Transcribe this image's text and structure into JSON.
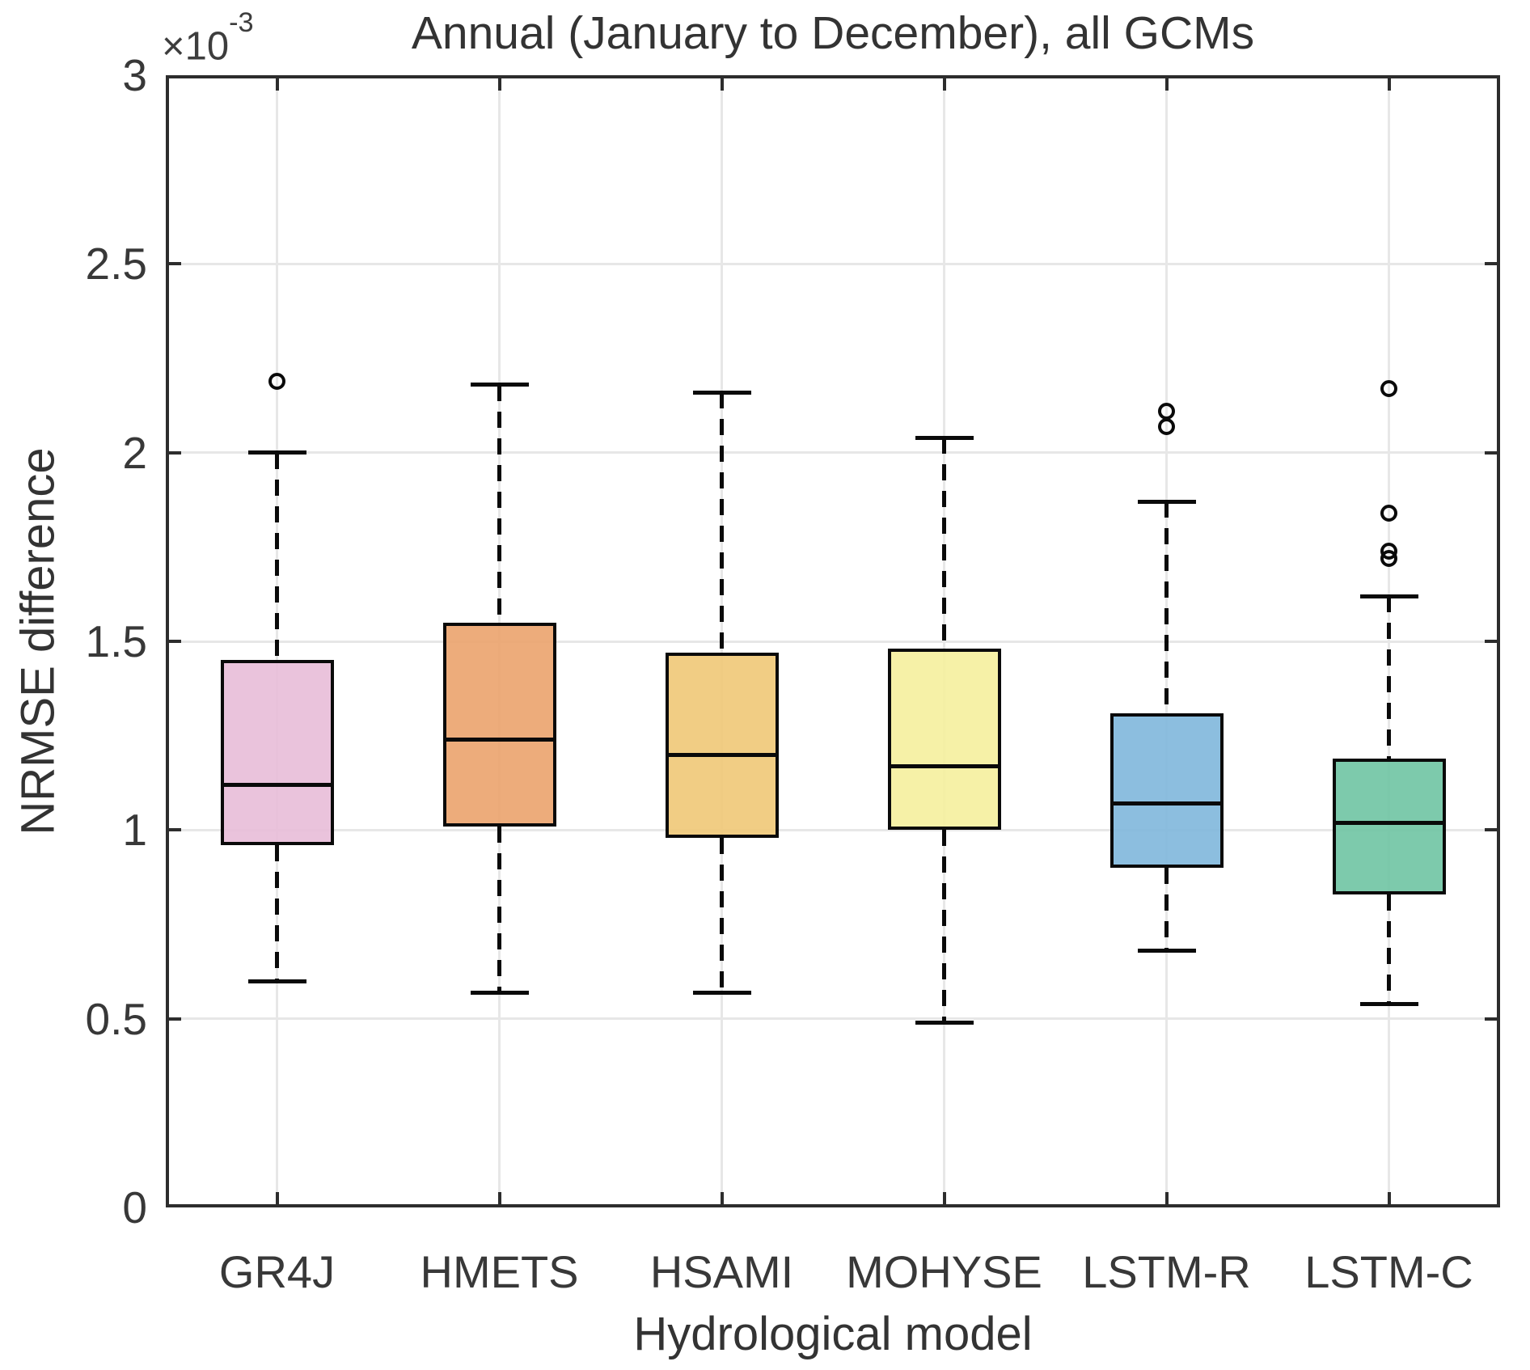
{
  "page": {
    "background": "#ffffff"
  },
  "chart_data": {
    "type": "boxplot",
    "title": "Annual (January to December), all GCMs",
    "xlabel": "Hydrological model",
    "ylabel": "NRMSE difference",
    "y_multiplier": {
      "prefix": "×10",
      "exponent": "-3"
    },
    "ylim": [
      0,
      3
    ],
    "units_note": "y values shown in units of 1e-3",
    "grid": "on",
    "legend": "none",
    "yticks": [
      {
        "value": 0,
        "label": "0"
      },
      {
        "value": 0.5,
        "label": "0.5"
      },
      {
        "value": 1,
        "label": "1"
      },
      {
        "value": 1.5,
        "label": "1.5"
      },
      {
        "value": 2,
        "label": "2"
      },
      {
        "value": 2.5,
        "label": "2.5"
      },
      {
        "value": 3,
        "label": "3"
      }
    ],
    "categories": [
      "GR4J",
      "HMETS",
      "HSAMI",
      "MOHYSE",
      "LSTM-R",
      "LSTM-C"
    ],
    "series": [
      {
        "name": "GR4J",
        "whisker_low": 0.6,
        "q1": 0.96,
        "median": 1.12,
        "q3": 1.45,
        "whisker_high": 2.0,
        "outliers": [
          2.19
        ],
        "fill_color": "#E8BED9"
      },
      {
        "name": "HMETS",
        "whisker_low": 0.57,
        "q1": 1.01,
        "median": 1.24,
        "q3": 1.55,
        "whisker_high": 2.18,
        "outliers": [],
        "fill_color": "#ECA570"
      },
      {
        "name": "HSAMI",
        "whisker_low": 0.57,
        "q1": 0.98,
        "median": 1.2,
        "q3": 1.47,
        "whisker_high": 2.16,
        "outliers": [],
        "fill_color": "#F0C97A"
      },
      {
        "name": "MOHYSE",
        "whisker_low": 0.49,
        "q1": 1.0,
        "median": 1.17,
        "q3": 1.48,
        "whisker_high": 2.04,
        "outliers": [],
        "fill_color": "#F5F0A0"
      },
      {
        "name": "LSTM-R",
        "whisker_low": 0.68,
        "q1": 0.9,
        "median": 1.07,
        "q3": 1.31,
        "whisker_high": 1.87,
        "outliers": [
          2.11,
          2.07
        ],
        "fill_color": "#82B8DC"
      },
      {
        "name": "LSTM-C",
        "whisker_low": 0.54,
        "q1": 0.83,
        "median": 1.02,
        "q3": 1.19,
        "whisker_high": 1.62,
        "outliers": [
          2.17,
          1.84,
          1.74,
          1.72
        ],
        "fill_color": "#72C6A5"
      }
    ],
    "style": {
      "box_edge_color": "#0a0a0a",
      "median_color": "#0a0a0a",
      "whisker_color": "#0a0a0a",
      "outlier_color": "#0a0a0a",
      "gridline_color": "#e7e7e7",
      "axis_color": "#2d2d2d",
      "text_color": "#383838"
    }
  }
}
